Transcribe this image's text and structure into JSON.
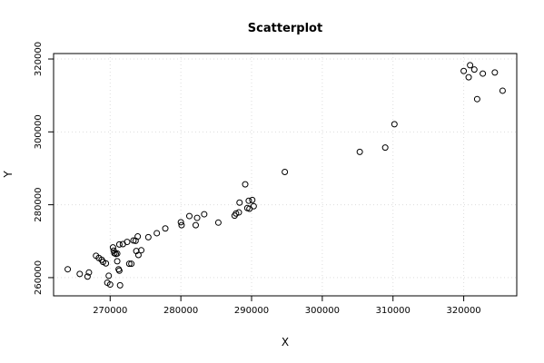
{
  "chart_data": {
    "type": "scatter",
    "title": "Scatterplot",
    "xlabel": "X",
    "ylabel": "Y",
    "xlim": [
      262000,
      327500
    ],
    "ylim": [
      255000,
      321500
    ],
    "x_ticks": [
      270000,
      280000,
      290000,
      300000,
      310000,
      320000
    ],
    "y_ticks": [
      260000,
      280000,
      300000,
      320000
    ],
    "x_tick_labels": [
      "270000",
      "280000",
      "290000",
      "300000",
      "310000",
      "320000"
    ],
    "y_tick_labels": [
      "260000",
      "280000",
      "300000",
      "320000"
    ],
    "grid": true,
    "marker": "open-circle",
    "points": [
      [
        264000,
        262300
      ],
      [
        265700,
        261000
      ],
      [
        266800,
        260300
      ],
      [
        267000,
        261400
      ],
      [
        268000,
        266000
      ],
      [
        268400,
        265400
      ],
      [
        268800,
        264900
      ],
      [
        269000,
        264300
      ],
      [
        269400,
        263900
      ],
      [
        269600,
        258600
      ],
      [
        269800,
        260500
      ],
      [
        270000,
        258100
      ],
      [
        270400,
        268300
      ],
      [
        270500,
        267400
      ],
      [
        270600,
        266700
      ],
      [
        270800,
        266500
      ],
      [
        271000,
        264500
      ],
      [
        271000,
        266600
      ],
      [
        271200,
        262300
      ],
      [
        271300,
        261900
      ],
      [
        271300,
        269100
      ],
      [
        271400,
        257900
      ],
      [
        271800,
        269200
      ],
      [
        272400,
        269800
      ],
      [
        272700,
        263800
      ],
      [
        273000,
        263800
      ],
      [
        273300,
        270200
      ],
      [
        273600,
        270100
      ],
      [
        273700,
        267300
      ],
      [
        273900,
        271300
      ],
      [
        274000,
        266200
      ],
      [
        274400,
        267500
      ],
      [
        275400,
        271100
      ],
      [
        276600,
        272200
      ],
      [
        277800,
        273500
      ],
      [
        280000,
        275200
      ],
      [
        280100,
        274400
      ],
      [
        281200,
        276900
      ],
      [
        282100,
        274400
      ],
      [
        282300,
        276400
      ],
      [
        283300,
        277400
      ],
      [
        285300,
        275100
      ],
      [
        287600,
        277000
      ],
      [
        287800,
        277600
      ],
      [
        288200,
        277900
      ],
      [
        288300,
        280600
      ],
      [
        289100,
        285600
      ],
      [
        289400,
        279100
      ],
      [
        289600,
        281100
      ],
      [
        289700,
        278900
      ],
      [
        290100,
        281300
      ],
      [
        290300,
        279600
      ],
      [
        294700,
        289000
      ],
      [
        305300,
        294500
      ],
      [
        308900,
        295700
      ],
      [
        310200,
        302100
      ],
      [
        320000,
        316700
      ],
      [
        320700,
        315000
      ],
      [
        320900,
        318300
      ],
      [
        321500,
        317100
      ],
      [
        321900,
        309000
      ],
      [
        322700,
        316000
      ],
      [
        324400,
        316300
      ],
      [
        325500,
        311300
      ]
    ]
  }
}
